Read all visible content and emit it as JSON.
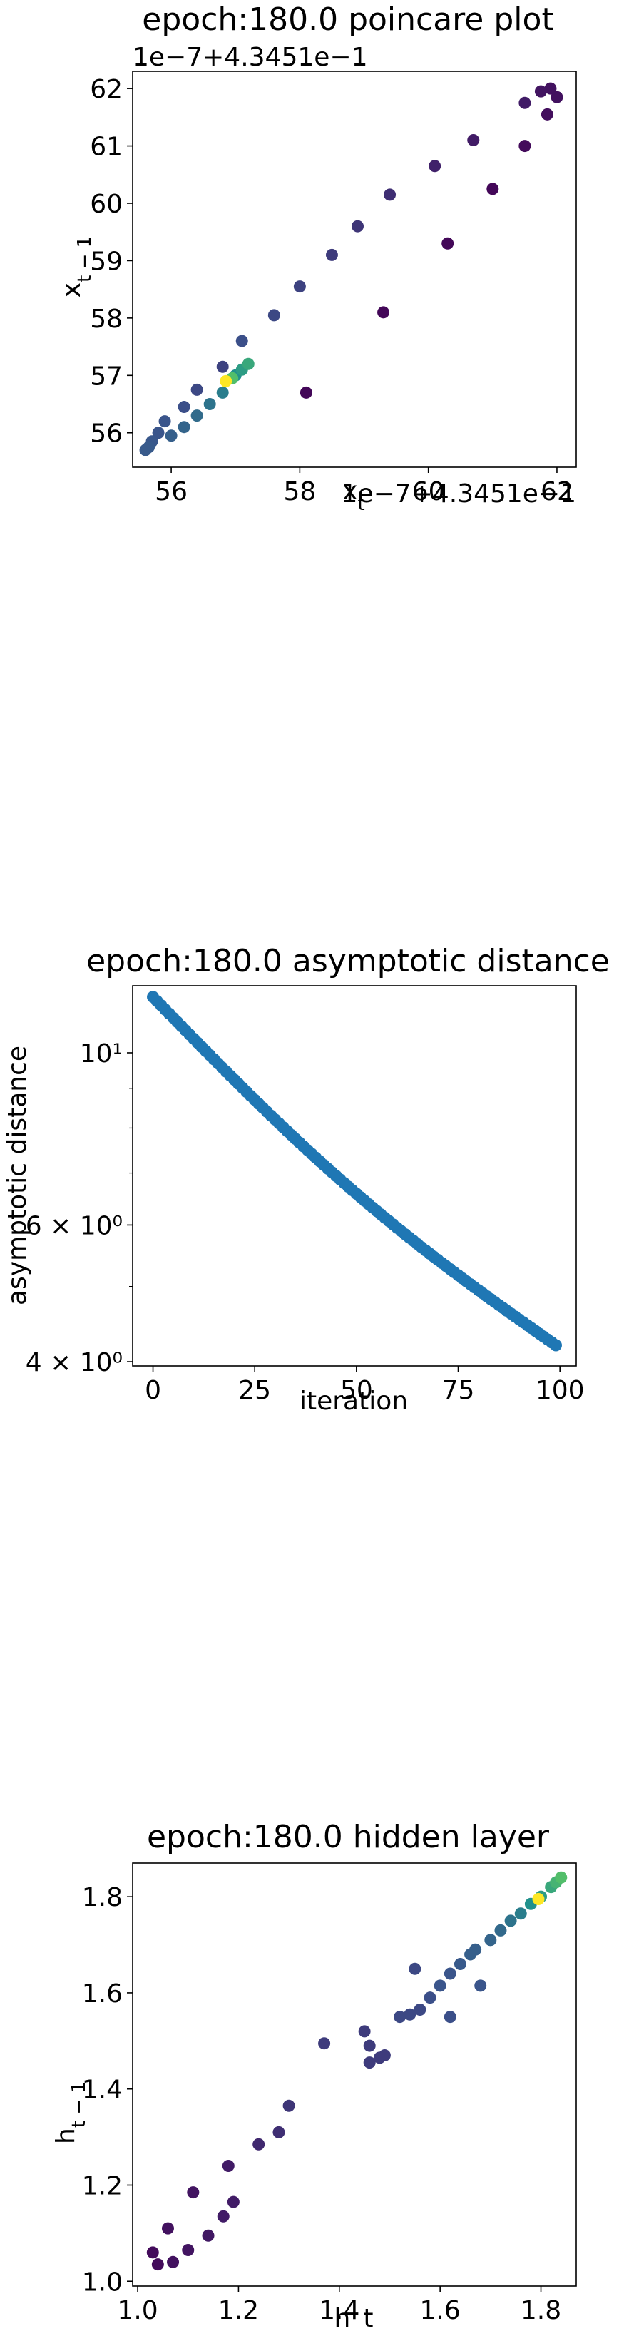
{
  "chart_data": [
    {
      "type": "scatter",
      "title": "epoch:180.0 poincare plot",
      "xlabel": "x_t",
      "ylabel": "x_{t-1}",
      "x_offset_text": "1e−7+4.3451e−1",
      "y_offset_text": "1e−7+4.3451e−1",
      "xlim": [
        55.4,
        62.3
      ],
      "ylim": [
        55.4,
        62.3
      ],
      "xticks": [
        56,
        58,
        60,
        62
      ],
      "yticks": [
        56,
        57,
        58,
        59,
        60,
        61,
        62
      ],
      "colormap": "viridis",
      "grid": false,
      "points": [
        {
          "x": 61.9,
          "y": 62.0,
          "c": 0.05
        },
        {
          "x": 62.0,
          "y": 61.85,
          "c": 0.05
        },
        {
          "x": 61.85,
          "y": 61.55,
          "c": 0.04
        },
        {
          "x": 61.75,
          "y": 61.95,
          "c": 0.06
        },
        {
          "x": 61.5,
          "y": 61.75,
          "c": 0.08
        },
        {
          "x": 61.5,
          "y": 61.0,
          "c": 0.03
        },
        {
          "x": 61.0,
          "y": 60.25,
          "c": 0.02
        },
        {
          "x": 60.7,
          "y": 61.1,
          "c": 0.08
        },
        {
          "x": 60.1,
          "y": 60.65,
          "c": 0.1
        },
        {
          "x": 60.3,
          "y": 59.3,
          "c": 0.02
        },
        {
          "x": 59.4,
          "y": 60.15,
          "c": 0.14
        },
        {
          "x": 59.3,
          "y": 58.1,
          "c": 0.02
        },
        {
          "x": 58.9,
          "y": 59.6,
          "c": 0.16
        },
        {
          "x": 58.5,
          "y": 59.1,
          "c": 0.18
        },
        {
          "x": 58.1,
          "y": 56.7,
          "c": 0.02
        },
        {
          "x": 58.0,
          "y": 58.55,
          "c": 0.2
        },
        {
          "x": 57.6,
          "y": 58.05,
          "c": 0.22
        },
        {
          "x": 57.1,
          "y": 57.6,
          "c": 0.24
        },
        {
          "x": 56.8,
          "y": 57.15,
          "c": 0.2
        },
        {
          "x": 56.4,
          "y": 56.75,
          "c": 0.22
        },
        {
          "x": 56.2,
          "y": 56.45,
          "c": 0.24
        },
        {
          "x": 55.9,
          "y": 56.2,
          "c": 0.26
        },
        {
          "x": 55.8,
          "y": 56.0,
          "c": 0.26
        },
        {
          "x": 55.7,
          "y": 55.85,
          "c": 0.27
        },
        {
          "x": 55.65,
          "y": 55.75,
          "c": 0.28
        },
        {
          "x": 55.6,
          "y": 55.7,
          "c": 0.28
        },
        {
          "x": 56.0,
          "y": 55.95,
          "c": 0.3
        },
        {
          "x": 56.2,
          "y": 56.1,
          "c": 0.32
        },
        {
          "x": 56.4,
          "y": 56.3,
          "c": 0.35
        },
        {
          "x": 56.6,
          "y": 56.5,
          "c": 0.38
        },
        {
          "x": 56.8,
          "y": 56.7,
          "c": 0.42
        },
        {
          "x": 57.0,
          "y": 57.0,
          "c": 0.5
        },
        {
          "x": 57.1,
          "y": 57.1,
          "c": 0.55
        },
        {
          "x": 57.2,
          "y": 57.2,
          "c": 0.6
        },
        {
          "x": 56.95,
          "y": 56.95,
          "c": 0.7
        },
        {
          "x": 56.85,
          "y": 56.9,
          "c": 1.0
        }
      ]
    },
    {
      "type": "scatter",
      "title": "epoch:180.0 asymptotic distance",
      "xlabel": "iteration",
      "ylabel": "asymptotic distance",
      "yscale": "log",
      "xlim": [
        -5,
        104
      ],
      "ylim": [
        3.95,
        12.2
      ],
      "xticks": [
        0,
        25,
        50,
        75,
        100
      ],
      "yticks": [
        {
          "value": 4,
          "label": "4 × 10⁰"
        },
        {
          "value": 6,
          "label": "6 × 10⁰"
        },
        {
          "value": 10,
          "label": "10¹"
        }
      ],
      "color": "#1f77b4",
      "grid": false,
      "y_start": 11.8,
      "y_end": 4.2,
      "n_points": 100
    },
    {
      "type": "scatter",
      "title": "epoch:180.0 hidden layer",
      "xlabel": "h_t",
      "ylabel": "h_{t-1}",
      "xlim": [
        0.99,
        1.87
      ],
      "ylim": [
        0.99,
        1.87
      ],
      "xticks": [
        1.0,
        1.2,
        1.4,
        1.6,
        1.8
      ],
      "yticks": [
        1.0,
        1.2,
        1.4,
        1.6,
        1.8
      ],
      "colormap": "viridis",
      "grid": false,
      "points": [
        {
          "x": 1.03,
          "y": 1.06,
          "c": 0.03
        },
        {
          "x": 1.04,
          "y": 1.035,
          "c": 0.03
        },
        {
          "x": 1.06,
          "y": 1.11,
          "c": 0.05
        },
        {
          "x": 1.07,
          "y": 1.04,
          "c": 0.05
        },
        {
          "x": 1.1,
          "y": 1.065,
          "c": 0.06
        },
        {
          "x": 1.11,
          "y": 1.185,
          "c": 0.06
        },
        {
          "x": 1.14,
          "y": 1.095,
          "c": 0.07
        },
        {
          "x": 1.17,
          "y": 1.135,
          "c": 0.08
        },
        {
          "x": 1.18,
          "y": 1.24,
          "c": 0.08
        },
        {
          "x": 1.19,
          "y": 1.165,
          "c": 0.08
        },
        {
          "x": 1.24,
          "y": 1.285,
          "c": 0.12
        },
        {
          "x": 1.28,
          "y": 1.31,
          "c": 0.14
        },
        {
          "x": 1.3,
          "y": 1.365,
          "c": 0.16
        },
        {
          "x": 1.37,
          "y": 1.495,
          "c": 0.18
        },
        {
          "x": 1.45,
          "y": 1.52,
          "c": 0.18
        },
        {
          "x": 1.46,
          "y": 1.455,
          "c": 0.18
        },
        {
          "x": 1.46,
          "y": 1.49,
          "c": 0.18
        },
        {
          "x": 1.48,
          "y": 1.465,
          "c": 0.18
        },
        {
          "x": 1.49,
          "y": 1.47,
          "c": 0.18
        },
        {
          "x": 1.52,
          "y": 1.55,
          "c": 0.22
        },
        {
          "x": 1.54,
          "y": 1.555,
          "c": 0.22
        },
        {
          "x": 1.55,
          "y": 1.65,
          "c": 0.22
        },
        {
          "x": 1.56,
          "y": 1.565,
          "c": 0.22
        },
        {
          "x": 1.58,
          "y": 1.59,
          "c": 0.24
        },
        {
          "x": 1.6,
          "y": 1.615,
          "c": 0.26
        },
        {
          "x": 1.62,
          "y": 1.55,
          "c": 0.24
        },
        {
          "x": 1.62,
          "y": 1.64,
          "c": 0.26
        },
        {
          "x": 1.64,
          "y": 1.66,
          "c": 0.28
        },
        {
          "x": 1.66,
          "y": 1.68,
          "c": 0.3
        },
        {
          "x": 1.67,
          "y": 1.69,
          "c": 0.3
        },
        {
          "x": 1.68,
          "y": 1.615,
          "c": 0.26
        },
        {
          "x": 1.7,
          "y": 1.71,
          "c": 0.32
        },
        {
          "x": 1.72,
          "y": 1.73,
          "c": 0.34
        },
        {
          "x": 1.74,
          "y": 1.75,
          "c": 0.38
        },
        {
          "x": 1.76,
          "y": 1.765,
          "c": 0.42
        },
        {
          "x": 1.78,
          "y": 1.785,
          "c": 0.5
        },
        {
          "x": 1.8,
          "y": 1.8,
          "c": 0.55
        },
        {
          "x": 1.82,
          "y": 1.82,
          "c": 0.6
        },
        {
          "x": 1.83,
          "y": 1.83,
          "c": 0.65
        },
        {
          "x": 1.84,
          "y": 1.84,
          "c": 0.7
        },
        {
          "x": 1.795,
          "y": 1.795,
          "c": 1.0
        }
      ]
    }
  ]
}
